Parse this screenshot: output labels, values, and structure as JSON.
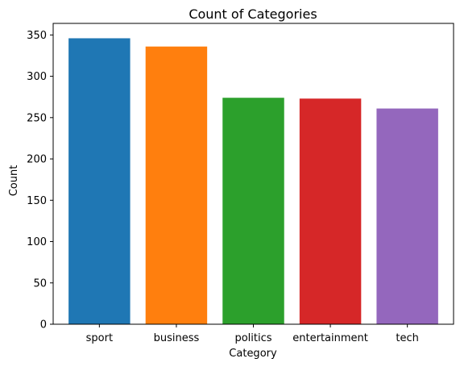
{
  "chart_data": {
    "type": "bar",
    "title": "Count of Categories",
    "xlabel": "Category",
    "ylabel": "Count",
    "categories": [
      "sport",
      "business",
      "politics",
      "entertainment",
      "tech"
    ],
    "values": [
      346,
      336,
      274,
      273,
      261
    ],
    "colors": [
      "#1f77b4",
      "#ff7f0e",
      "#2ca02c",
      "#d62728",
      "#9467bd"
    ],
    "ylim": [
      0,
      364
    ],
    "yticks": [
      0,
      50,
      100,
      150,
      200,
      250,
      300,
      350
    ],
    "grid": false
  }
}
